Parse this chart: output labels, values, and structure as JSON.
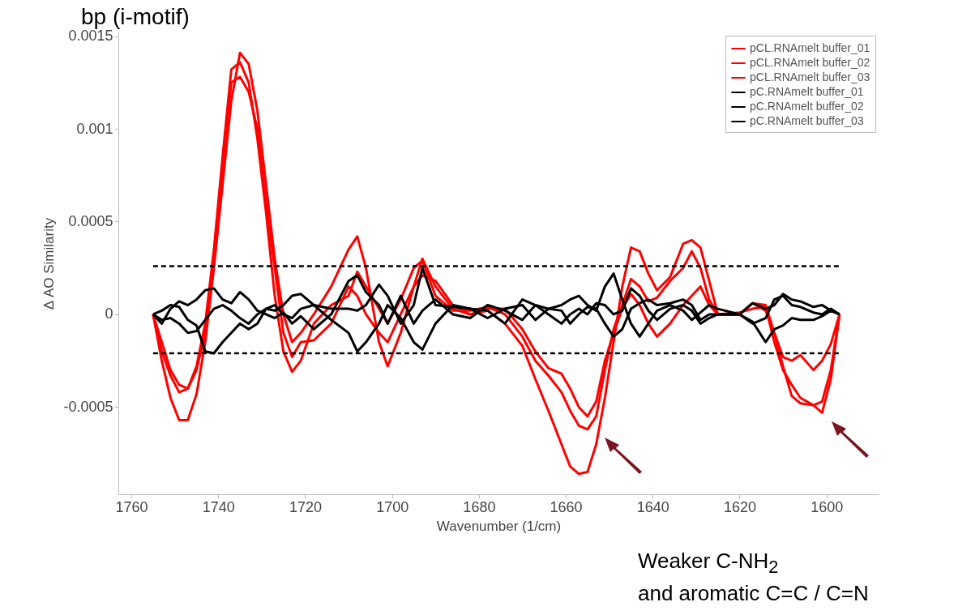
{
  "chart_data": {
    "type": "line",
    "title": "bp (i-motif)",
    "xlabel": "Wavenumber (1/cm)",
    "ylabel": "Δ AO Similarity",
    "xlim": [
      1763,
      1588
    ],
    "xticks": [
      1760,
      1740,
      1720,
      1700,
      1680,
      1660,
      1640,
      1620,
      1600
    ],
    "ylim": [
      -0.00097,
      0.00152
    ],
    "yticks": [
      -0.0005,
      0,
      0.0005,
      0.001,
      0.0015
    ],
    "legend": "top right",
    "line_style": "solid",
    "annotations": [
      "Weaker C-NH$_{2}$",
      "and aromatic C=C / C=N"
    ],
    "ref_lines": [
      {
        "axis": "y",
        "value": 0.00026,
        "color": "#000000",
        "line_style": "dashed"
      },
      {
        "axis": "y",
        "value": -0.00021,
        "color": "#000000",
        "line_style": "dashed"
      }
    ],
    "x": [
      1755,
      1753,
      1751,
      1749,
      1747,
      1745,
      1743,
      1741,
      1739,
      1737,
      1735,
      1733,
      1731,
      1729,
      1727,
      1725,
      1723,
      1721,
      1718,
      1714,
      1710,
      1708,
      1706,
      1703,
      1701,
      1698,
      1695,
      1693,
      1690,
      1686,
      1682,
      1678,
      1674,
      1670,
      1667,
      1664,
      1661,
      1659,
      1657,
      1655,
      1653,
      1651,
      1649,
      1647,
      1645,
      1643,
      1641,
      1639,
      1636,
      1633,
      1631,
      1629,
      1627,
      1625,
      1620,
      1617,
      1614,
      1612,
      1610,
      1608,
      1606,
      1603,
      1601,
      1599,
      1597
    ],
    "series": [
      {
        "name": "pCL.RNAmelt buffer_01",
        "color": "#ff0000",
        "values": [
          0,
          -0.00025,
          -0.00045,
          -0.00057,
          -0.00057,
          -0.00043,
          -0.00015,
          0.00025,
          0.0007,
          0.00115,
          0.00141,
          0.00135,
          0.0011,
          0.0007,
          0.0003,
          0,
          -0.00015,
          -0.0001,
          0,
          0.00015,
          0.00035,
          0.00042,
          0.00025,
          -0.00015,
          -0.00028,
          -0.0001,
          0.00015,
          0.0003,
          0.00015,
          3e-05,
          0,
          2e-05,
          -5e-05,
          -0.00017,
          -0.00035,
          -0.00052,
          -0.0007,
          -0.00082,
          -0.00086,
          -0.00085,
          -0.0007,
          -0.00045,
          -0.00015,
          0.00015,
          0.00036,
          0.00034,
          0.00022,
          0.00013,
          0.0002,
          0.00038,
          0.0004,
          0.00036,
          0.00018,
          0,
          0,
          6e-05,
          5e-05,
          -0.0001,
          -0.00028,
          -0.00044,
          -0.00048,
          -0.00049,
          -0.00053,
          -0.00035,
          0
        ]
      },
      {
        "name": "pCL.RNAmelt buffer_02",
        "color": "#ff0000",
        "values": [
          0,
          -0.0002,
          -0.00033,
          -0.00042,
          -0.0004,
          -0.00028,
          -5e-05,
          0.00035,
          0.00085,
          0.00132,
          0.00136,
          0.00125,
          0.00095,
          0.00055,
          0.0001,
          -0.0002,
          -0.00031,
          -0.00025,
          -5e-05,
          5e-05,
          0.0001,
          0.00023,
          0.00015,
          3e-05,
          -5e-05,
          8e-05,
          0.00025,
          0.00029,
          0.0001,
          2e-05,
          2e-05,
          4e-05,
          0,
          -0.00012,
          -0.00025,
          -0.00033,
          -0.00042,
          -0.00052,
          -0.0006,
          -0.00062,
          -0.00055,
          -0.0003,
          -8e-05,
          5e-05,
          0.00019,
          0.00015,
          7e-05,
          9e-05,
          0.00018,
          0.00025,
          0.00034,
          0.00025,
          8e-05,
          0,
          1e-05,
          3e-05,
          4e-05,
          -0.00015,
          -0.0003,
          -0.00038,
          -0.00045,
          -0.00049,
          -0.00047,
          -0.0003,
          0
        ]
      },
      {
        "name": "pCL.RNAmelt buffer_03",
        "color": "#ff0000",
        "values": [
          0,
          -0.00015,
          -0.0003,
          -0.00038,
          -0.0004,
          -0.0003,
          -0.0001,
          0.0003,
          0.0008,
          0.00125,
          0.00128,
          0.0012,
          0.001,
          0.0006,
          0.00025,
          -0.0001,
          -0.00023,
          -0.00015,
          -0.00014,
          -5e-05,
          0.00015,
          0.0001,
          0,
          -0.0001,
          -0.00015,
          0,
          0.00015,
          0.00021,
          0.00018,
          5e-05,
          0,
          3e-05,
          3e-05,
          -8e-05,
          -0.0002,
          -0.00029,
          -0.00032,
          -0.0004,
          -0.0005,
          -0.00055,
          -0.00047,
          -0.00025,
          -0.0001,
          3e-05,
          0.00011,
          5e-05,
          -5e-05,
          -0.00012,
          -5e-05,
          5e-05,
          0.0001,
          0.00015,
          5e-05,
          0,
          0,
          6e-05,
          2e-05,
          -0.0001,
          -0.00023,
          -0.00025,
          -0.00022,
          -0.0003,
          -0.00025,
          -0.00016,
          0
        ]
      },
      {
        "name": "pC.RNAmelt buffer_01",
        "color": "#000000",
        "values": [
          0,
          2e-05,
          5e-05,
          4e-05,
          -3e-05,
          -6e-05,
          -0.0002,
          -0.00021,
          -0.00015,
          -0.0001,
          -5e-05,
          -8e-05,
          -5e-05,
          3e-05,
          5e-05,
          0,
          -2e-05,
          3e-05,
          5e-05,
          -3e-05,
          -0.0001,
          -0.0002,
          -0.00015,
          -5e-05,
          5e-05,
          -2e-05,
          -0.00015,
          -0.00019,
          -5e-05,
          5e-05,
          3e-05,
          -2e-05,
          3e-05,
          5e-05,
          -3e-05,
          3e-05,
          5e-05,
          8e-05,
          0.0001,
          5e-05,
          2e-05,
          0.00015,
          0.00022,
          8e-05,
          -5e-05,
          -0.00012,
          -5e-05,
          2e-05,
          5e-05,
          2e-05,
          -3e-05,
          1e-05,
          5e-05,
          3e-05,
          0,
          -4e-05,
          -0.00015,
          -8e-05,
          -6e-05,
          -2e-05,
          -3e-05,
          -3e-05,
          -1e-05,
          2e-05,
          0
        ]
      },
      {
        "name": "pC.RNAmelt buffer_02",
        "color": "#000000",
        "values": [
          0,
          -5e-05,
          3e-05,
          7e-05,
          5e-05,
          8e-05,
          0.00013,
          0.00014,
          8e-05,
          6e-05,
          0.00012,
          8e-05,
          2e-05,
          0,
          -2e-05,
          1e-05,
          -5e-05,
          -1e-05,
          -8e-05,
          0,
          0.00018,
          0.00021,
          0.00012,
          5e-05,
          -5e-05,
          0.0001,
          -5e-05,
          2e-05,
          8e-05,
          0,
          -2e-05,
          5e-05,
          2e-05,
          -3e-05,
          5e-05,
          0,
          -5e-05,
          0,
          3e-05,
          0,
          6e-05,
          5e-05,
          0,
          2e-05,
          0.00014,
          0.0001,
          2e-05,
          -3e-05,
          3e-05,
          5e-05,
          2e-05,
          -5e-05,
          -2e-05,
          0,
          0,
          -5e-05,
          -2e-05,
          8e-05,
          0.0001,
          5e-05,
          4e-05,
          1e-05,
          0,
          3e-05,
          0
        ]
      },
      {
        "name": "pC.RNAmelt buffer_03",
        "color": "#000000",
        "values": [
          0,
          -3e-05,
          -2e-05,
          -5e-05,
          -0.0001,
          -9e-05,
          -3e-05,
          3e-05,
          5e-05,
          2e-05,
          -2e-05,
          -5e-05,
          0,
          3e-05,
          2e-05,
          5e-05,
          0.0001,
          0.00011,
          5e-05,
          3e-05,
          3e-05,
          2e-05,
          5e-05,
          0.00016,
          0.0001,
          -5e-05,
          5e-05,
          0.00025,
          5e-05,
          4e-05,
          3e-05,
          2e-05,
          -5e-05,
          8e-05,
          5e-05,
          3e-05,
          2e-05,
          -5e-05,
          0,
          4e-05,
          3e-05,
          -5e-05,
          -0.00012,
          -8e-05,
          3e-05,
          6e-05,
          8e-05,
          5e-05,
          6e-05,
          8e-05,
          5e-05,
          -3e-05,
          0,
          0,
          0,
          6e-05,
          3e-05,
          5e-05,
          0.00011,
          8e-05,
          7e-05,
          4e-05,
          5e-05,
          2e-05,
          0
        ]
      }
    ]
  }
}
